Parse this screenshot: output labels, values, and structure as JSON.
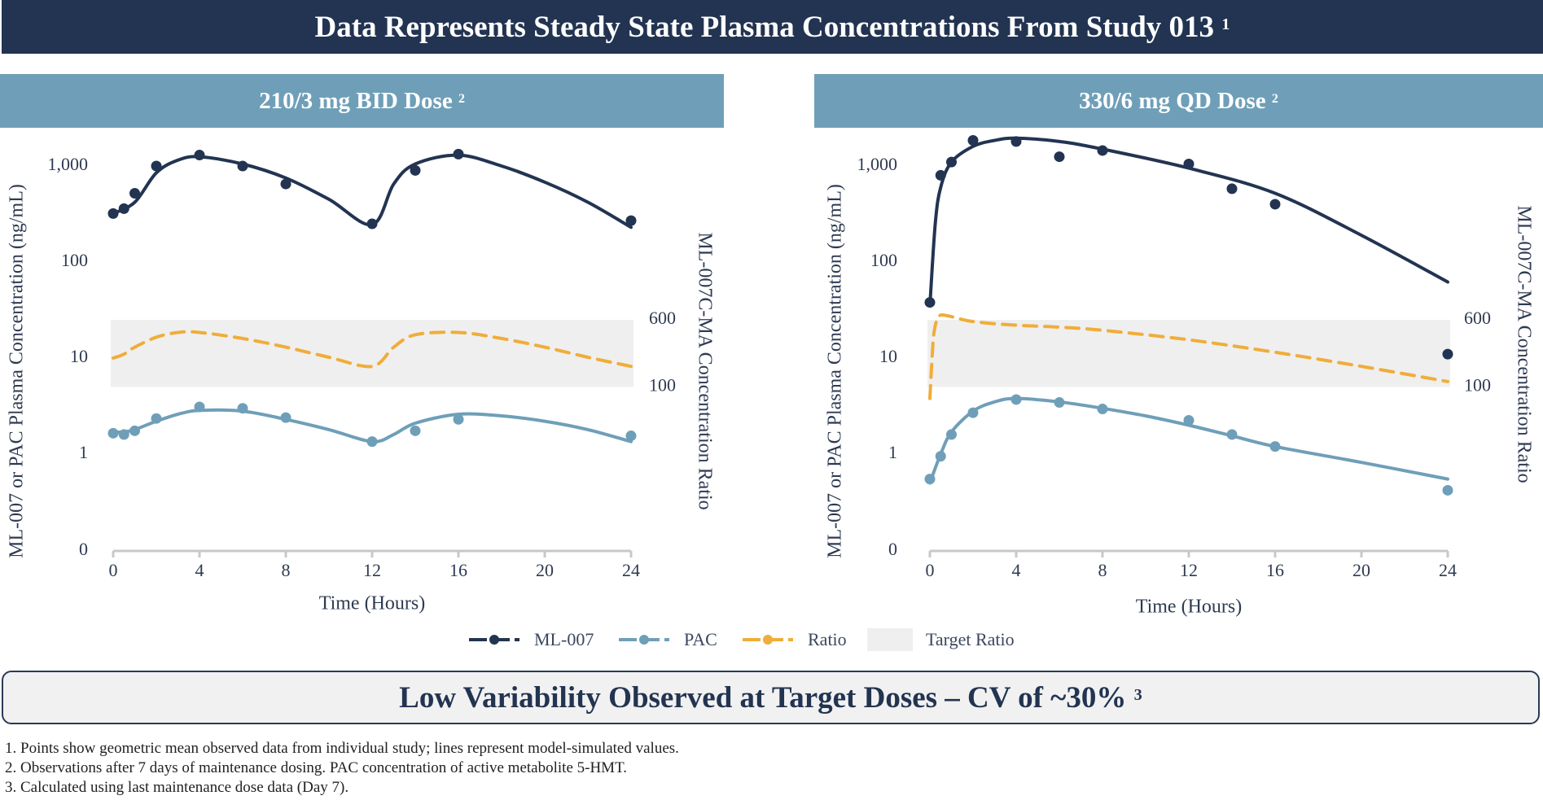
{
  "banner": {
    "title": "Data Represents Steady State Plasma Concentrations From Study 013",
    "sup": "1"
  },
  "summary": {
    "text": "Low Variability Observed at Target Doses – CV of ~30%",
    "sup": "3"
  },
  "footnotes": [
    "1. Points show geometric mean observed data from individual study; lines represent model-simulated values.",
    "2. Observations after 7 days of maintenance dosing. PAC concentration of active metabolite 5-HMT.",
    "3. Calculated using last maintenance dose data (Day 7)."
  ],
  "legend": [
    {
      "label": "ML-007",
      "kind": "solid-dot",
      "color": "#223451"
    },
    {
      "label": "PAC",
      "kind": "solid-dot",
      "color": "#6f9fb8"
    },
    {
      "label": "Ratio",
      "kind": "dashed-dot",
      "color": "#f0ad3a"
    },
    {
      "label": "Target Ratio",
      "kind": "box",
      "color": "#efefef"
    }
  ],
  "colors": {
    "ml007": "#223451",
    "pac": "#6f9fb8",
    "ratio": "#f0ad3a",
    "target": "#efefef",
    "axis": "#c8c8c8"
  },
  "chart_data": [
    {
      "type": "line",
      "title": "210/3 mg BID Dose",
      "title_sup": "2",
      "xlabel": "Time (Hours)",
      "ylabel": "ML-007 or PAC Plasma Concentration (ng/mL)",
      "y2label": "ML-007C-MA Concentration Ratio",
      "xlim": [
        0,
        24
      ],
      "xticks": [
        0,
        4,
        8,
        12,
        16,
        20,
        24
      ],
      "yticks": [
        {
          "v": 0,
          "label": "0"
        },
        {
          "v": 1,
          "label": "1"
        },
        {
          "v": 10,
          "label": "10"
        },
        {
          "v": 100,
          "label": "100"
        },
        {
          "v": 1000,
          "label": "1,000"
        }
      ],
      "y2ticks": [
        {
          "v": 600,
          "label": "600"
        },
        {
          "v": 100,
          "label": "100"
        }
      ],
      "target_band": [
        25,
        5
      ],
      "series": [
        {
          "name": "ML-007",
          "line": [
            [
              0,
              320
            ],
            [
              1,
              420
            ],
            [
              2,
              850
            ],
            [
              3,
              1150
            ],
            [
              4,
              1250
            ],
            [
              6,
              1050
            ],
            [
              8,
              750
            ],
            [
              10,
              450
            ],
            [
              12,
              245
            ],
            [
              13,
              650
            ],
            [
              14,
              1050
            ],
            [
              16,
              1300
            ],
            [
              18,
              1000
            ],
            [
              20,
              680
            ],
            [
              22,
              420
            ],
            [
              24,
              230
            ]
          ],
          "points": [
            [
              0,
              320
            ],
            [
              0.5,
              360
            ],
            [
              1,
              520
            ],
            [
              2,
              1000
            ],
            [
              4,
              1300
            ],
            [
              6,
              1000
            ],
            [
              8,
              650
            ],
            [
              12,
              250
            ],
            [
              14,
              900
            ],
            [
              16,
              1330
            ],
            [
              24,
              270
            ]
          ]
        },
        {
          "name": "PAC",
          "line": [
            [
              0,
              1.7
            ],
            [
              0.5,
              1.7
            ],
            [
              1,
              1.8
            ],
            [
              2,
              2.2
            ],
            [
              3,
              2.6
            ],
            [
              4,
              2.85
            ],
            [
              6,
              2.8
            ],
            [
              8,
              2.3
            ],
            [
              10,
              1.8
            ],
            [
              12,
              1.35
            ],
            [
              13,
              1.6
            ],
            [
              14,
              2.1
            ],
            [
              16,
              2.6
            ],
            [
              18,
              2.5
            ],
            [
              20,
              2.2
            ],
            [
              22,
              1.8
            ],
            [
              24,
              1.35
            ]
          ],
          "points": [
            [
              0,
              1.65
            ],
            [
              0.5,
              1.6
            ],
            [
              1,
              1.75
            ],
            [
              2,
              2.35
            ],
            [
              4,
              3.1
            ],
            [
              6,
              3.0
            ],
            [
              8,
              2.4
            ],
            [
              12,
              1.35
            ],
            [
              14,
              1.75
            ],
            [
              16,
              2.3
            ],
            [
              24,
              1.55
            ]
          ]
        },
        {
          "name": "Ratio",
          "line": [
            [
              0,
              10
            ],
            [
              0.5,
              11
            ],
            [
              1,
              13
            ],
            [
              2,
              16.5
            ],
            [
              3,
              18.5
            ],
            [
              4,
              18.5
            ],
            [
              6,
              16
            ],
            [
              8,
              13
            ],
            [
              10,
              10.2
            ],
            [
              12,
              8.2
            ],
            [
              13,
              13
            ],
            [
              14,
              17.5
            ],
            [
              16,
              18.5
            ],
            [
              18,
              16
            ],
            [
              20,
              13
            ],
            [
              22,
              10.2
            ],
            [
              24,
              8.2
            ]
          ]
        }
      ]
    },
    {
      "type": "line",
      "title": "330/6 mg QD Dose",
      "title_sup": "2",
      "xlabel": "Time (Hours)",
      "ylabel": "ML-007 or PAC Plasma Concentration (ng/mL)",
      "y2label": "ML-007C-MA Concentration Ratio",
      "xlim": [
        0,
        24
      ],
      "xticks": [
        0,
        4,
        8,
        12,
        16,
        20,
        24
      ],
      "yticks": [
        {
          "v": 0,
          "label": "0"
        },
        {
          "v": 1,
          "label": "1"
        },
        {
          "v": 10,
          "label": "10"
        },
        {
          "v": 100,
          "label": "100"
        },
        {
          "v": 1000,
          "label": "1,000"
        }
      ],
      "y2ticks": [
        {
          "v": 600,
          "label": "600"
        },
        {
          "v": 100,
          "label": "100"
        }
      ],
      "target_band": [
        25,
        5
      ],
      "series": [
        {
          "name": "ML-007",
          "line": [
            [
              0,
              35
            ],
            [
              0.25,
              250
            ],
            [
              0.5,
              600
            ],
            [
              1,
              1100
            ],
            [
              2,
              1600
            ],
            [
              3,
              1850
            ],
            [
              4,
              1950
            ],
            [
              6,
              1800
            ],
            [
              8,
              1500
            ],
            [
              12,
              950
            ],
            [
              16,
              520
            ],
            [
              20,
              190
            ],
            [
              24,
              62
            ]
          ],
          "points": [
            [
              0,
              38
            ],
            [
              0.5,
              800
            ],
            [
              1,
              1100
            ],
            [
              2,
              1850
            ],
            [
              4,
              1800
            ],
            [
              6,
              1250
            ],
            [
              8,
              1450
            ],
            [
              12,
              1050
            ],
            [
              14,
              580
            ],
            [
              16,
              400
            ],
            [
              24,
              11
            ]
          ]
        },
        {
          "name": "PAC",
          "line": [
            [
              0,
              0.5
            ],
            [
              0.5,
              1.0
            ],
            [
              1,
              1.7
            ],
            [
              2,
              2.8
            ],
            [
              3,
              3.5
            ],
            [
              4,
              3.8
            ],
            [
              6,
              3.5
            ],
            [
              8,
              3.0
            ],
            [
              10,
              2.5
            ],
            [
              12,
              2.0
            ],
            [
              14,
              1.55
            ],
            [
              16,
              1.2
            ],
            [
              20,
              0.82
            ],
            [
              24,
              0.55
            ]
          ],
          "points": [
            [
              0,
              0.55
            ],
            [
              0.5,
              0.95
            ],
            [
              1,
              1.6
            ],
            [
              2,
              2.7
            ],
            [
              4,
              3.7
            ],
            [
              6,
              3.45
            ],
            [
              8,
              2.95
            ],
            [
              12,
              2.25
            ],
            [
              14,
              1.6
            ],
            [
              16,
              1.2
            ],
            [
              24,
              0.42
            ]
          ]
        },
        {
          "name": "Ratio",
          "line": [
            [
              0,
              3.8
            ],
            [
              0.15,
              15
            ],
            [
              0.3,
              24
            ],
            [
              0.5,
              28
            ],
            [
              1,
              27
            ],
            [
              2,
              24
            ],
            [
              4,
              22
            ],
            [
              6,
              21
            ],
            [
              8,
              19.5
            ],
            [
              12,
              15.5
            ],
            [
              16,
              11.5
            ],
            [
              20,
              8.2
            ],
            [
              24,
              5.7
            ]
          ]
        }
      ]
    }
  ]
}
